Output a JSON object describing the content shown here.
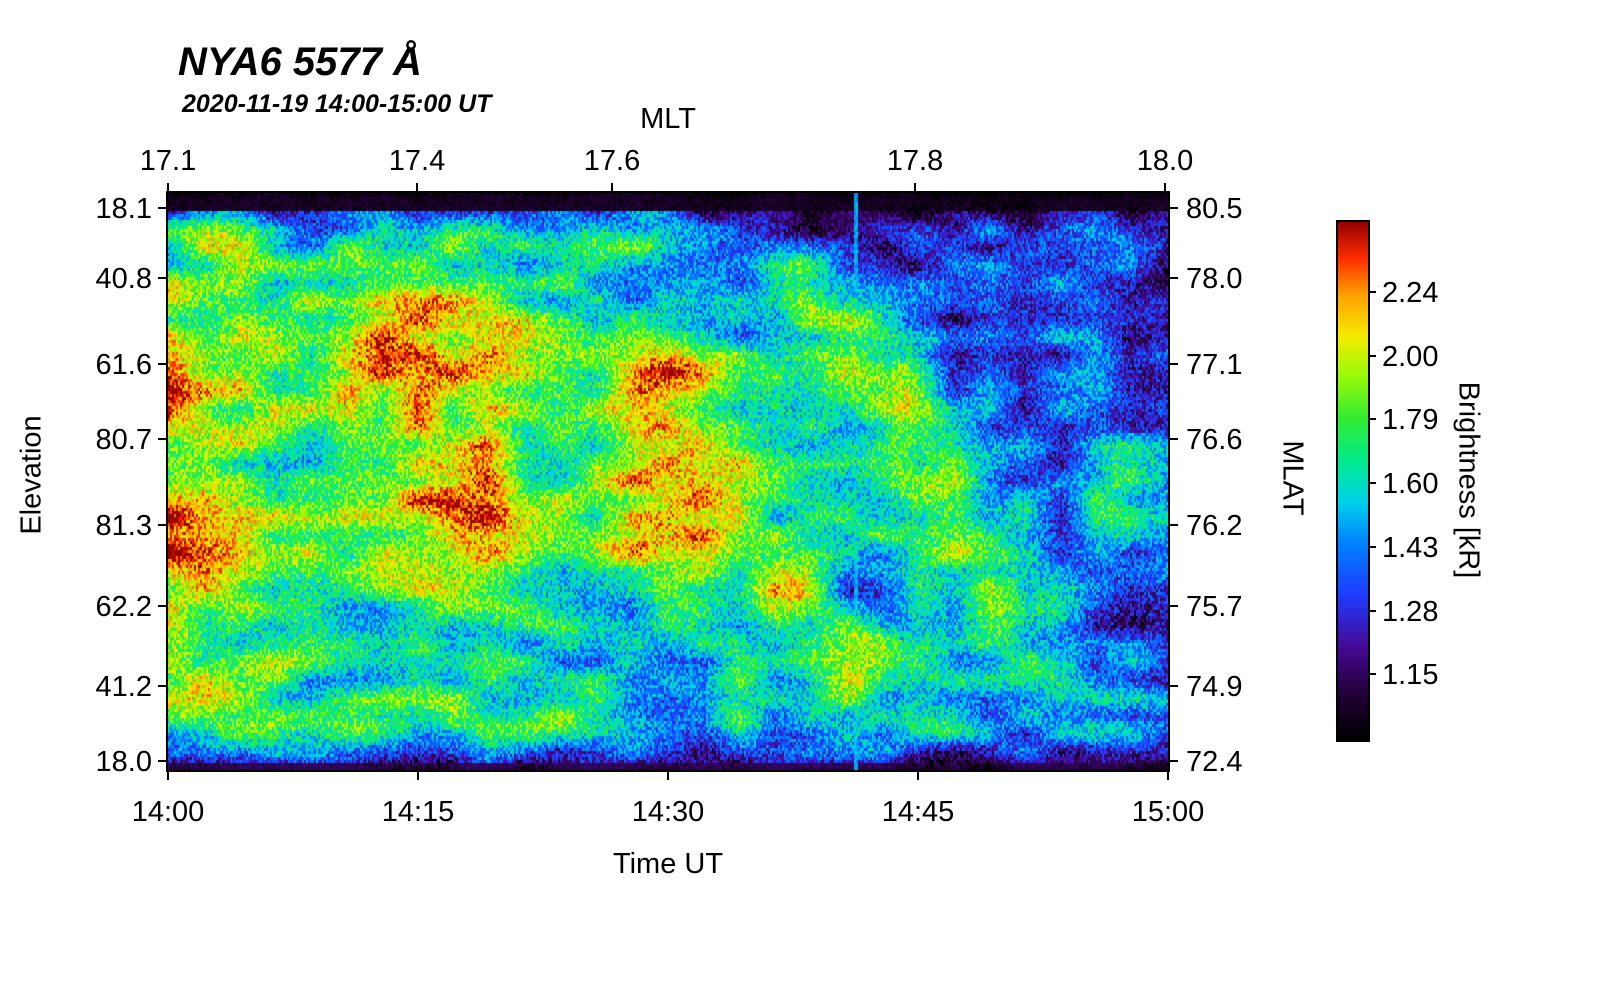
{
  "chart_data": {
    "type": "heatmap",
    "title": "NYA6 5577 Å",
    "subtitle": "2020-11-19 14:00-15:00 UT",
    "xlabel_top": "MLT",
    "xlabel_bottom": "Time UT",
    "ylabel_left": "Elevation",
    "ylabel_right": "MLAT",
    "colorbar_label": "Brightness [kR]",
    "x_ticks_top": {
      "labels": [
        "17.1",
        "17.4",
        "17.6",
        "17.8",
        "18.0"
      ],
      "fracs": [
        0.0,
        0.249,
        0.444,
        0.747,
        0.997
      ]
    },
    "x_ticks_bottom": {
      "labels": [
        "14:00",
        "14:15",
        "14:30",
        "14:45",
        "15:00"
      ],
      "fracs": [
        0.0,
        0.25,
        0.5,
        0.75,
        1.0
      ]
    },
    "y_ticks_left": {
      "labels": [
        "18.1",
        "40.8",
        "61.6",
        "80.7",
        "81.3",
        "62.2",
        "41.2",
        "18.0"
      ],
      "fracs": [
        0.026,
        0.148,
        0.296,
        0.427,
        0.575,
        0.715,
        0.855,
        0.985
      ]
    },
    "y_ticks_right": {
      "labels": [
        "80.5",
        "78.0",
        "77.1",
        "76.6",
        "76.2",
        "75.7",
        "74.9",
        "72.4"
      ],
      "fracs": [
        0.026,
        0.148,
        0.296,
        0.427,
        0.575,
        0.715,
        0.855,
        0.985
      ]
    },
    "colorbar_ticks": {
      "labels": [
        "2.24",
        "2.00",
        "1.79",
        "1.60",
        "1.43",
        "1.28",
        "1.15"
      ],
      "fracs_from_top": [
        0.135,
        0.258,
        0.381,
        0.504,
        0.627,
        0.75,
        0.873
      ]
    },
    "value_range_kr": [
      1.0,
      2.45
    ],
    "scale": "log",
    "legend_position": "right-colorbar",
    "grid": "off",
    "colormap_stops": [
      [
        0.0,
        0,
        0,
        0
      ],
      [
        0.09,
        35,
        0,
        55
      ],
      [
        0.18,
        70,
        10,
        150
      ],
      [
        0.28,
        30,
        60,
        255
      ],
      [
        0.38,
        0,
        130,
        255
      ],
      [
        0.46,
        0,
        210,
        235
      ],
      [
        0.54,
        0,
        235,
        140
      ],
      [
        0.62,
        50,
        235,
        50
      ],
      [
        0.7,
        150,
        250,
        10
      ],
      [
        0.78,
        245,
        235,
        0
      ],
      [
        0.86,
        255,
        160,
        0
      ],
      [
        0.93,
        255,
        45,
        0
      ],
      [
        1.0,
        150,
        0,
        0
      ]
    ],
    "brightness_grid_kr": {
      "description": "Coarse 14-row x 20-col approximation of keogram brightness in kR; rows top (elev 18.1 / MLAT 80.5) to bottom (elev 18.0 / MLAT 72.4); cols 14:00 UT to 15:00 UT",
      "n_rows": 14,
      "n_cols": 20,
      "rows": [
        [
          1.05,
          1.06,
          1.05,
          1.07,
          1.06,
          1.05,
          1.05,
          1.04,
          1.05,
          1.04,
          1.04,
          1.03,
          1.04,
          1.03,
          1.03,
          1.04,
          1.03,
          1.03,
          1.04,
          1.03
        ],
        [
          1.7,
          1.75,
          1.6,
          1.5,
          1.65,
          1.7,
          1.55,
          1.45,
          1.6,
          1.65,
          1.35,
          1.25,
          1.2,
          1.15,
          1.2,
          1.35,
          1.3,
          1.25,
          1.35,
          1.2
        ],
        [
          1.75,
          1.8,
          1.7,
          1.65,
          1.85,
          1.9,
          1.7,
          1.6,
          1.55,
          1.5,
          1.45,
          1.35,
          1.85,
          1.6,
          1.25,
          1.15,
          1.3,
          1.4,
          1.3,
          1.15
        ],
        [
          1.8,
          1.7,
          1.75,
          1.8,
          2.05,
          2.15,
          1.95,
          1.7,
          1.6,
          1.55,
          1.5,
          1.4,
          1.7,
          1.85,
          1.4,
          1.2,
          1.25,
          1.35,
          1.25,
          1.15
        ],
        [
          2.25,
          1.9,
          1.8,
          1.85,
          2.1,
          2.2,
          1.9,
          1.75,
          1.8,
          2.3,
          2.2,
          1.7,
          1.55,
          1.8,
          1.9,
          1.3,
          1.25,
          1.3,
          1.25,
          1.2
        ],
        [
          2.2,
          1.85,
          1.75,
          1.7,
          1.95,
          2.0,
          1.85,
          1.7,
          1.75,
          2.25,
          1.95,
          1.65,
          1.5,
          1.6,
          1.85,
          1.4,
          1.3,
          1.35,
          1.3,
          1.2
        ],
        [
          1.9,
          1.8,
          1.7,
          1.6,
          1.75,
          1.9,
          2.15,
          1.8,
          1.7,
          2.2,
          2.25,
          1.8,
          1.6,
          1.5,
          1.85,
          1.6,
          1.4,
          1.35,
          1.6,
          1.35
        ],
        [
          2.3,
          2.0,
          1.8,
          1.7,
          1.9,
          2.25,
          2.2,
          1.8,
          1.75,
          1.9,
          2.1,
          1.75,
          1.6,
          1.55,
          1.7,
          1.85,
          1.5,
          1.4,
          1.6,
          1.4
        ],
        [
          2.35,
          2.1,
          1.85,
          1.7,
          1.8,
          2.0,
          2.25,
          1.9,
          1.7,
          2.2,
          2.05,
          1.7,
          1.55,
          1.5,
          1.6,
          1.8,
          1.55,
          1.35,
          1.45,
          1.3
        ],
        [
          2.0,
          1.9,
          1.75,
          1.65,
          1.7,
          1.8,
          1.7,
          1.6,
          1.5,
          1.6,
          1.7,
          1.8,
          1.9,
          1.35,
          1.45,
          1.6,
          1.75,
          1.4,
          1.3,
          1.25
        ],
        [
          1.95,
          1.8,
          1.7,
          1.6,
          1.55,
          1.65,
          1.6,
          1.5,
          1.45,
          1.4,
          1.5,
          1.6,
          1.75,
          2.0,
          1.4,
          1.5,
          1.65,
          1.45,
          1.3,
          1.2
        ],
        [
          1.85,
          1.75,
          1.7,
          1.6,
          1.55,
          1.6,
          1.55,
          1.5,
          1.55,
          1.45,
          1.5,
          1.55,
          1.6,
          1.8,
          1.5,
          1.45,
          1.55,
          1.6,
          1.45,
          1.35
        ],
        [
          1.7,
          1.75,
          1.7,
          1.65,
          1.7,
          1.65,
          1.75,
          1.8,
          1.6,
          1.55,
          1.5,
          1.55,
          1.5,
          1.6,
          1.55,
          1.5,
          1.45,
          1.5,
          1.45,
          1.4
        ],
        [
          1.1,
          1.12,
          1.1,
          1.15,
          1.12,
          1.1,
          1.12,
          1.1,
          1.1,
          1.08,
          1.08,
          1.1,
          1.08,
          1.06,
          1.06,
          1.08,
          1.06,
          1.05,
          1.06,
          1.05
        ]
      ]
    },
    "features": {
      "vertical_line_time_frac": 0.685,
      "vertical_line_value_kr": 1.45
    }
  }
}
